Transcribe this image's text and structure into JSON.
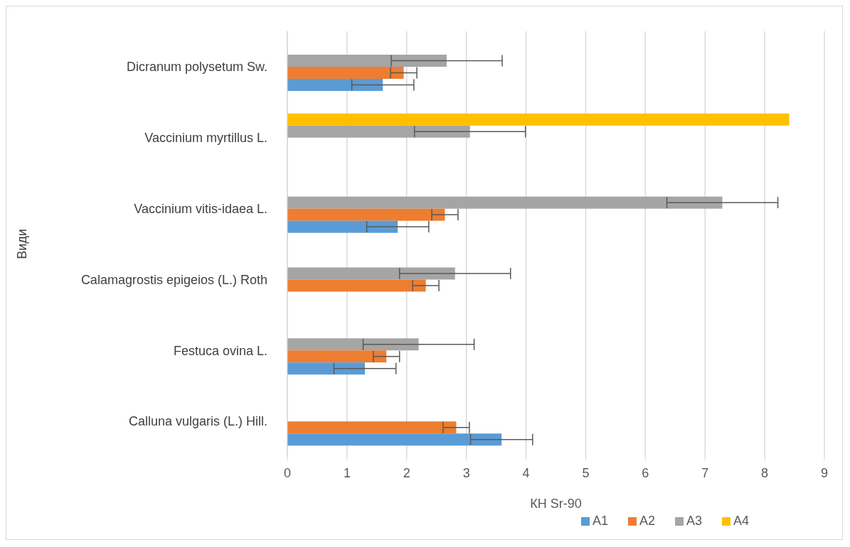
{
  "chart_data": {
    "type": "bar",
    "orientation": "horizontal",
    "xlabel": "КН Sr-90",
    "ylabel": "Види",
    "categories": [
      "Dicranum polysetum Sw.",
      "Vaccinium myrtillus L.",
      "Vaccinium vitis-idaea L.",
      "Calamagrostis epigeios (L.) Roth",
      "Festuca ovina L.",
      "Calluna vulgaris (L.) Hill."
    ],
    "series": [
      {
        "name": "A4",
        "color": "#ffc000",
        "values": [
          null,
          8.41,
          null,
          null,
          null,
          null
        ]
      },
      {
        "name": "A3",
        "color": "#a5a5a5",
        "values": [
          2.67,
          3.06,
          7.29,
          2.81,
          2.2,
          null
        ],
        "errors": [
          0.93,
          0.93,
          0.93,
          0.93,
          0.93,
          null
        ]
      },
      {
        "name": "A2",
        "color": "#ed7d31",
        "values": [
          1.95,
          null,
          2.64,
          2.32,
          1.66,
          2.83
        ],
        "errors": [
          0.22,
          null,
          0.22,
          0.22,
          0.22,
          0.22
        ]
      },
      {
        "name": "A1",
        "color": "#5b9bd5",
        "values": [
          1.6,
          null,
          1.85,
          null,
          1.3,
          3.59
        ],
        "errors": [
          0.52,
          null,
          0.52,
          null,
          0.52,
          0.52
        ]
      }
    ],
    "xlim": [
      0,
      9
    ],
    "xticks": [
      0,
      1,
      2,
      3,
      4,
      5,
      6,
      7,
      8,
      9
    ],
    "grid": "x",
    "legend": "bottom"
  }
}
